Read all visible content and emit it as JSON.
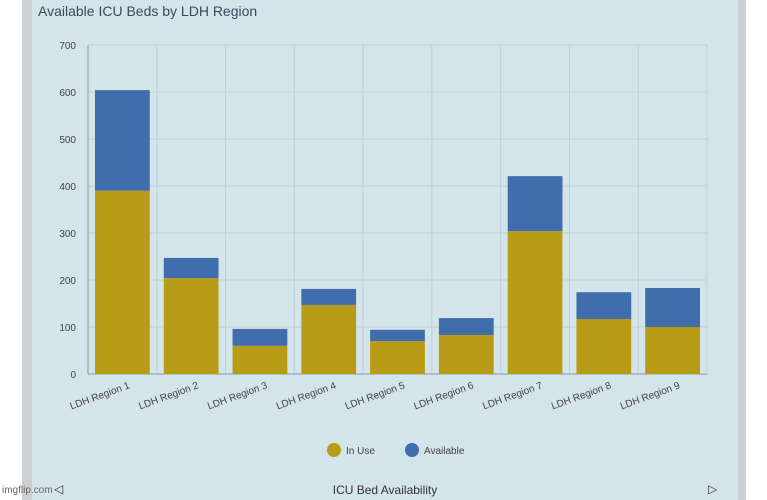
{
  "chart_data": {
    "type": "bar",
    "stacked": true,
    "title": "Available ICU Beds by LDH Region",
    "xlabel": "",
    "ylabel": "",
    "ylim": [
      0,
      700
    ],
    "yticks": [
      0,
      100,
      200,
      300,
      400,
      500,
      600,
      700
    ],
    "grid": true,
    "legend_position": "bottom",
    "categories": [
      "LDH Region 1",
      "LDH Region 2",
      "LDH Region 3",
      "LDH Region 4",
      "LDH Region 5",
      "LDH Region 6",
      "LDH Region 7",
      "LDH Region 8",
      "LDH Region 9"
    ],
    "series": [
      {
        "name": "In Use",
        "color": "#b89c17",
        "values": [
          390,
          204,
          60,
          147,
          70,
          83,
          304,
          117,
          100
        ]
      },
      {
        "name": "Available",
        "color": "#406dab",
        "values": [
          214,
          43,
          36,
          34,
          24,
          36,
          117,
          57,
          83
        ]
      }
    ]
  },
  "footer": {
    "label": "ICU Bed Availability",
    "prev_icon": "triangle-left-icon",
    "next_icon": "triangle-right-icon"
  },
  "watermark": "imgflip.com"
}
